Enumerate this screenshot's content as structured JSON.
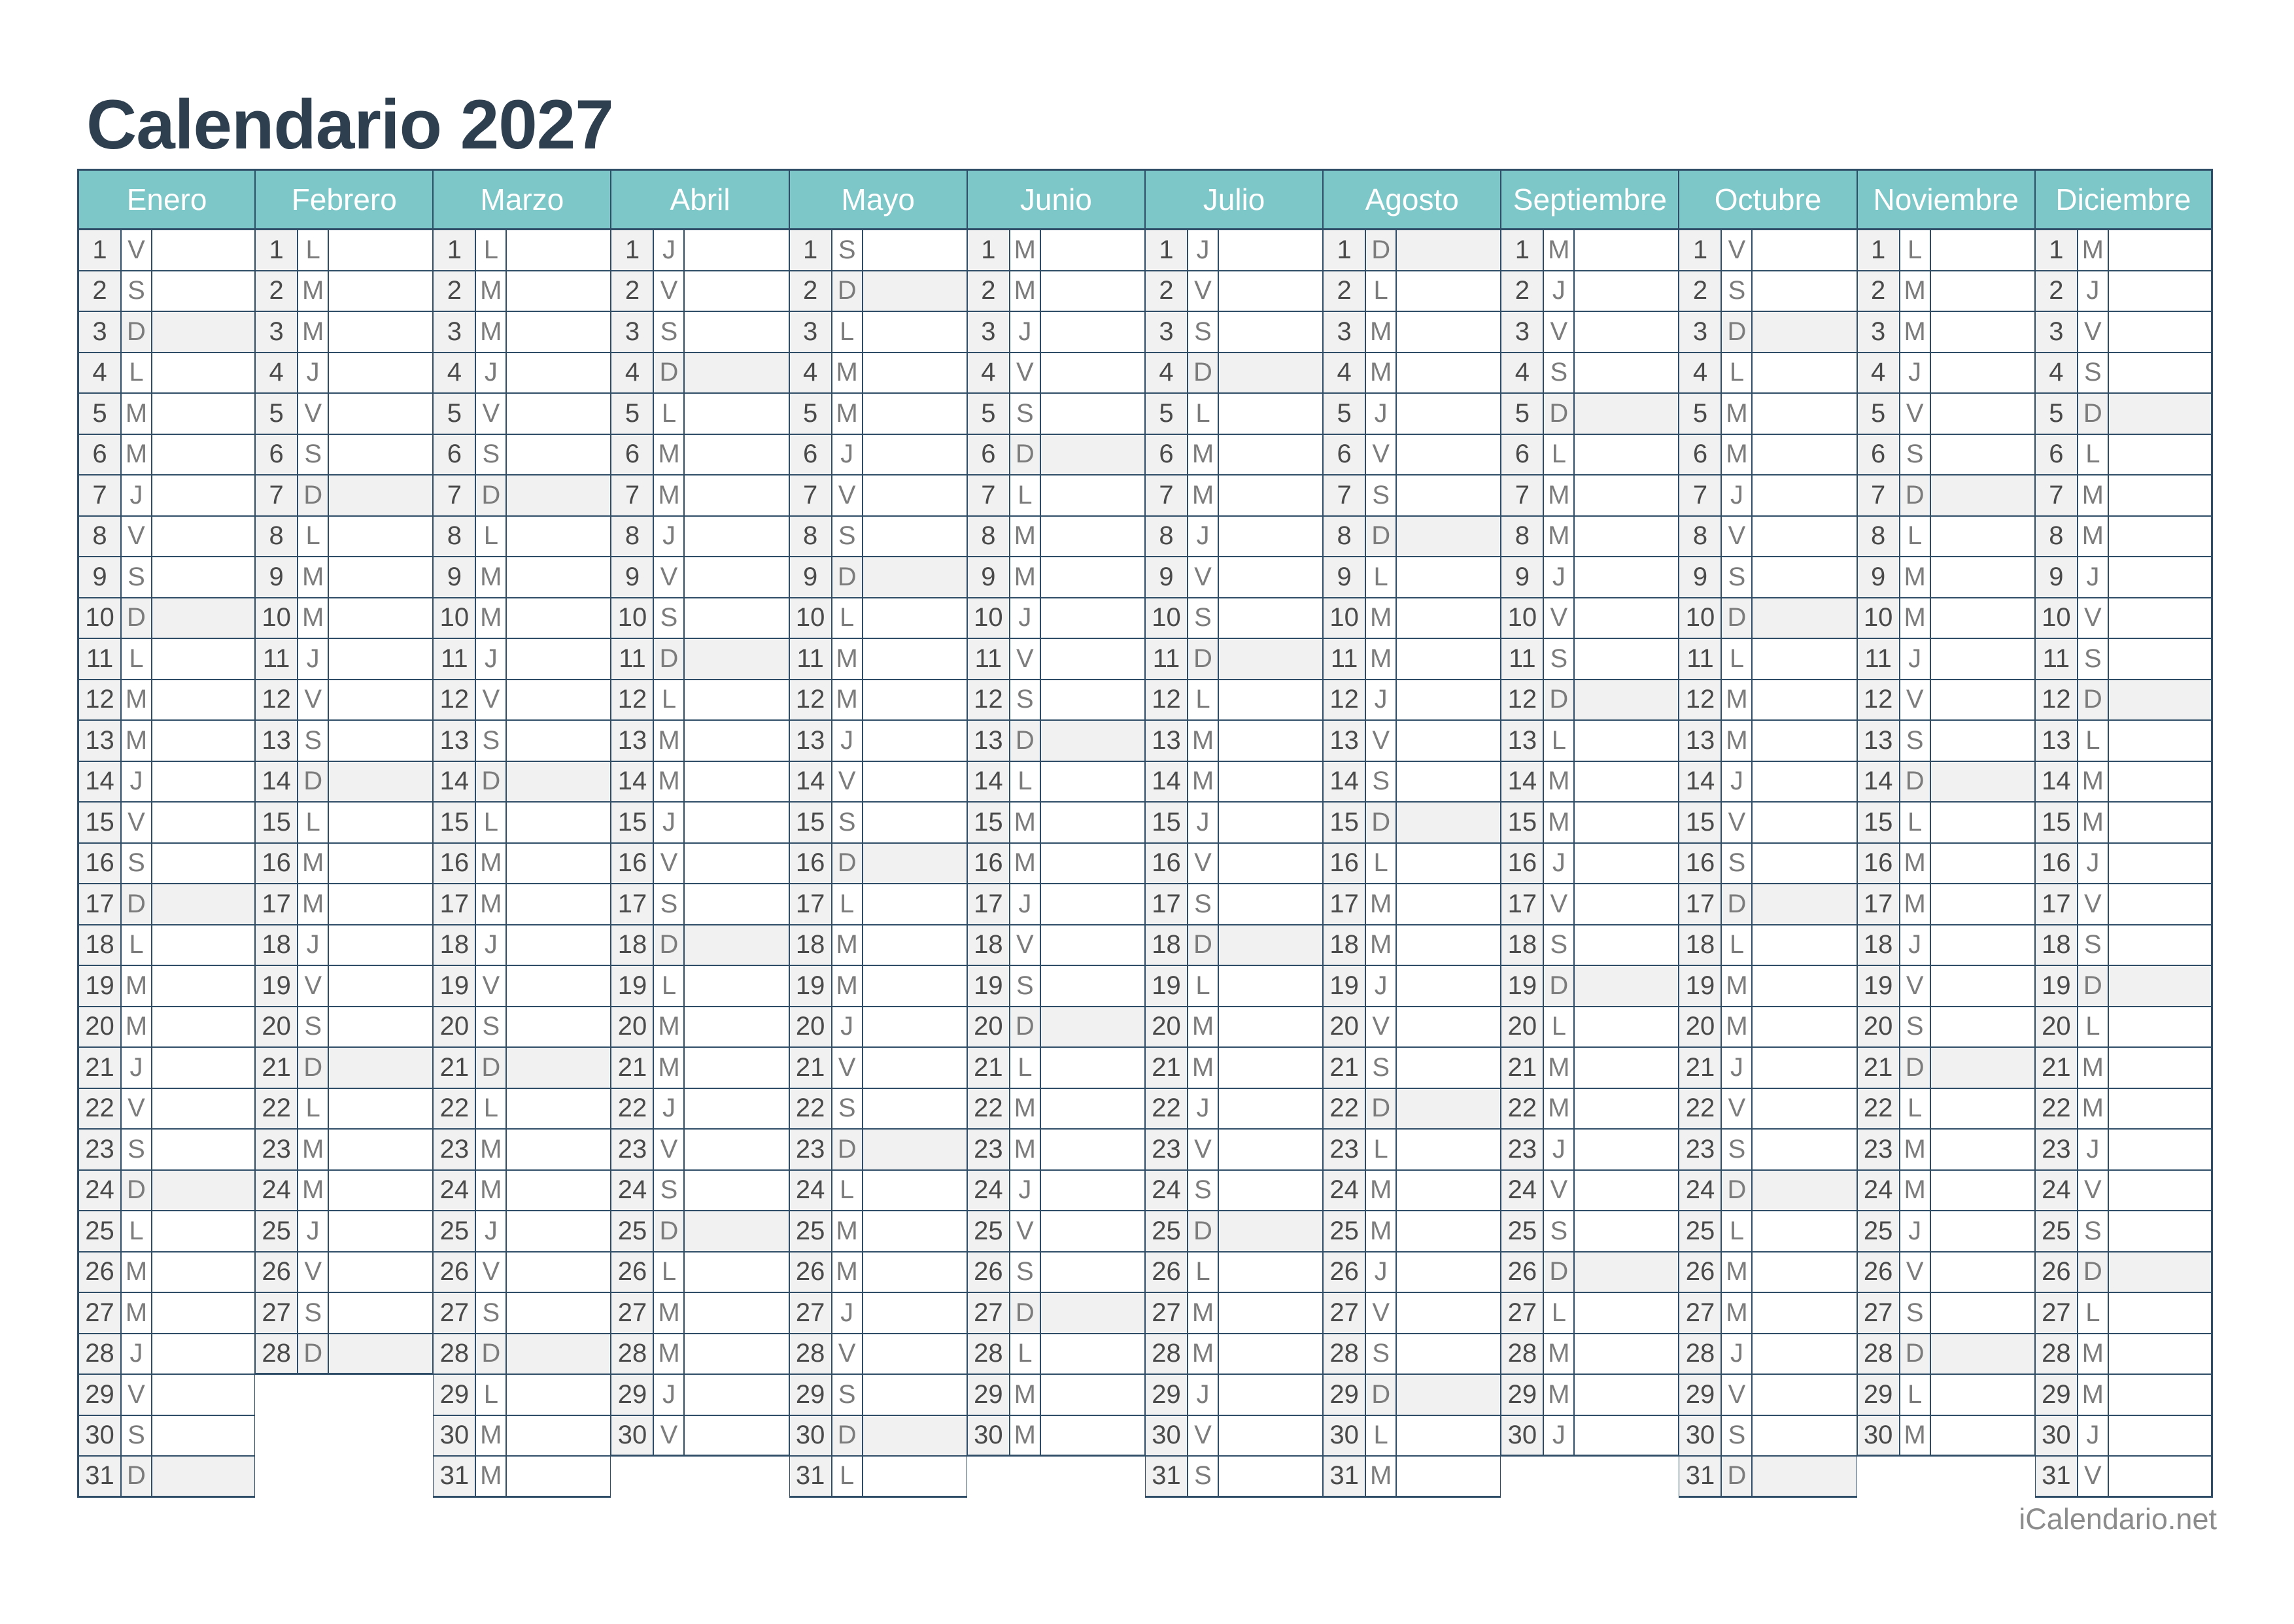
{
  "title": "Calendario 2027",
  "footer": "iCalendario.net",
  "weekday_letters": [
    "L",
    "M",
    "M",
    "J",
    "V",
    "S",
    "D"
  ],
  "sunday_letter": "D",
  "theme": {
    "header_bg": "#7dc7c8",
    "header_text": "#ffffff",
    "grid_line": "#2f4d66",
    "shade_bg": "#f1f1f1",
    "day_number_text": "#4a4a4a",
    "day_letter_text": "#7c7c7c",
    "title_text": "#2e3f50",
    "footer_text": "#8c8c8c"
  },
  "months": [
    {
      "name": "Enero",
      "weekday_letters": "VSDLMMJVSDLMMJVSDLMMJVSDLMMJVSD"
    },
    {
      "name": "Febrero",
      "weekday_letters": "LMMJVSDLMMJVSDLMMJVSDLMMJVSD"
    },
    {
      "name": "Marzo",
      "weekday_letters": "LMMJVSDLMMJVSDLMMJVSDLMMJVSDLMM"
    },
    {
      "name": "Abril",
      "weekday_letters": "JVSDLMMJVSDLMMJVSDLMMJVSDLMMJV"
    },
    {
      "name": "Mayo",
      "weekday_letters": "SDLMMJVSDLMMJVSDLMMJVSDLMMJVSDL"
    },
    {
      "name": "Junio",
      "weekday_letters": "MMJVSDLMMJVSDLMMJVSDLMMJVSDLMM"
    },
    {
      "name": "Julio",
      "weekday_letters": "JVSDLMMJVSDLMMJVSDLMMJVSDLMMJVS"
    },
    {
      "name": "Agosto",
      "weekday_letters": "DLMMJVSDLMMJVSDLMMJVSDLMMJVSDLM"
    },
    {
      "name": "Septiembre",
      "weekday_letters": "MJVSDLMMJVSDLMMJVSDLMMJVSDLMMJ"
    },
    {
      "name": "Octubre",
      "weekday_letters": "VSDLMMJVSDLMMJVSDLMMJVSDLMMJVSD"
    },
    {
      "name": "Noviembre",
      "weekday_letters": "LMMJVSDLMMJVSDLMMJVSDLMMJVSDLM"
    },
    {
      "name": "Diciembre",
      "weekday_letters": "MJVSDLMMJVSDLMMJVSDLMMJVSDLMMJV"
    }
  ]
}
